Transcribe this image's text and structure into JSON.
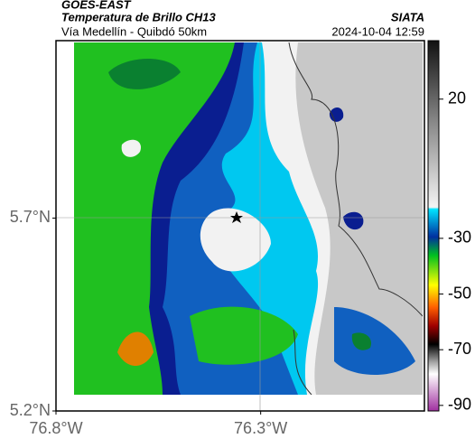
{
  "header": {
    "satellite": "GOES-EAST",
    "product": "Temperatura de Brillo CH13",
    "region": "Vía Medellín - Quibdó 50km",
    "source": "SIATA",
    "timestamp": "2024-10-04 12:59"
  },
  "map": {
    "xlim": [
      -76.8,
      -75.9
    ],
    "ylim": [
      5.2,
      6.16
    ],
    "xticks": [
      {
        "value": -76.8,
        "label": "76.8°W"
      },
      {
        "value": -76.3,
        "label": "76.3°W"
      }
    ],
    "yticks": [
      {
        "value": 5.7,
        "label": "5.7°N"
      },
      {
        "value": 5.2,
        "label": "5.2°N"
      }
    ]
  },
  "colorbar": {
    "lim": [
      -92,
      41
    ],
    "ticks": [
      20,
      -30,
      -50,
      -70,
      -90
    ]
  }
}
